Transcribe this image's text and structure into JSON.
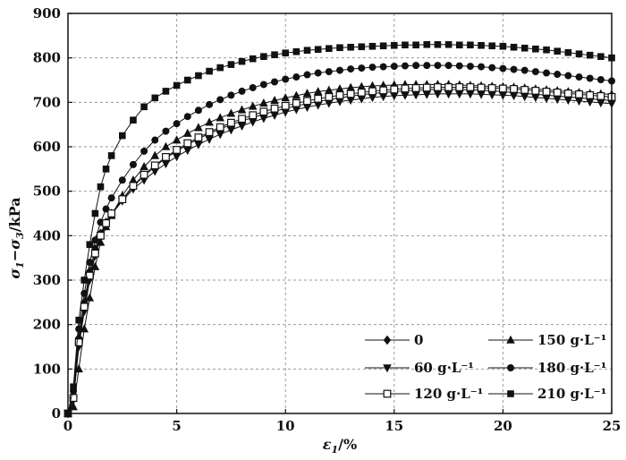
{
  "chart_data": {
    "type": "line",
    "title": "",
    "xlabel": "ε1/%",
    "ylabel": "σ1−σ3/kPa",
    "xlim": [
      0,
      25
    ],
    "ylim": [
      0,
      900
    ],
    "xticks": [
      0,
      5,
      10,
      15,
      20,
      25
    ],
    "yticks": [
      0,
      100,
      200,
      300,
      400,
      500,
      600,
      700,
      800,
      900
    ],
    "grid": true,
    "legend_position": "bottom-right",
    "x": [
      0,
      0.25,
      0.5,
      0.75,
      1,
      1.25,
      1.5,
      1.75,
      2,
      2.5,
      3,
      3.5,
      4,
      4.5,
      5,
      5.5,
      6,
      6.5,
      7,
      7.5,
      8,
      8.5,
      9,
      9.5,
      10,
      10.5,
      11,
      11.5,
      12,
      12.5,
      13,
      13.5,
      14,
      14.5,
      15,
      15.5,
      16,
      16.5,
      17,
      17.5,
      18,
      18.5,
      19,
      19.5,
      20,
      20.5,
      21,
      21.5,
      22,
      22.5,
      23,
      23.5,
      24,
      24.5,
      25
    ],
    "series": [
      {
        "name": "0",
        "marker": "diamond-filled",
        "values": [
          0,
          40,
          170,
          250,
          320,
          370,
          405,
          430,
          450,
          480,
          510,
          535,
          555,
          575,
          590,
          605,
          618,
          630,
          640,
          650,
          658,
          666,
          673,
          680,
          686,
          692,
          697,
          702,
          706,
          710,
          714,
          717,
          720,
          722,
          724,
          726,
          727,
          728,
          729,
          729,
          729,
          728,
          727,
          726,
          724,
          722,
          720,
          718,
          716,
          714,
          712,
          710,
          708,
          706,
          704
        ]
      },
      {
        "name": "150 g·L⁻¹",
        "marker": "triangle-up-filled",
        "values": [
          0,
          15,
          100,
          190,
          260,
          330,
          385,
          420,
          445,
          490,
          525,
          555,
          580,
          600,
          615,
          630,
          643,
          655,
          665,
          675,
          683,
          691,
          698,
          704,
          710,
          715,
          720,
          724,
          727,
          730,
          733,
          735,
          737,
          738,
          739,
          740,
          740,
          740,
          740,
          740,
          739,
          738,
          737,
          736,
          735,
          734,
          732,
          730,
          728,
          726,
          724,
          722,
          720,
          719,
          718
        ]
      },
      {
        "name": "60 g·L⁻¹",
        "marker": "triangle-down-filled",
        "values": [
          0,
          30,
          150,
          230,
          300,
          355,
          395,
          425,
          448,
          478,
          505,
          525,
          545,
          562,
          578,
          592,
          605,
          617,
          628,
          638,
          647,
          656,
          664,
          671,
          678,
          684,
          689,
          694,
          698,
          702,
          705,
          708,
          711,
          713,
          715,
          716,
          717,
          718,
          719,
          719,
          719,
          719,
          718,
          717,
          716,
          715,
          713,
          711,
          709,
          707,
          705,
          703,
          701,
          699,
          697
        ]
      },
      {
        "name": "180 g·L⁻¹",
        "marker": "circle-filled",
        "values": [
          0,
          50,
          190,
          270,
          340,
          390,
          430,
          460,
          485,
          525,
          560,
          590,
          615,
          635,
          652,
          668,
          682,
          695,
          706,
          716,
          725,
          733,
          740,
          746,
          752,
          757,
          762,
          766,
          769,
          772,
          775,
          777,
          779,
          780,
          781,
          782,
          783,
          783,
          783,
          783,
          782,
          781,
          780,
          778,
          776,
          774,
          772,
          769,
          766,
          763,
          760,
          757,
          754,
          751,
          748
        ]
      },
      {
        "name": "120 g·L⁻¹",
        "marker": "square-open",
        "values": [
          0,
          35,
          160,
          240,
          310,
          360,
          400,
          428,
          450,
          482,
          512,
          537,
          558,
          577,
          593,
          608,
          621,
          633,
          644,
          654,
          663,
          671,
          679,
          686,
          692,
          698,
          703,
          708,
          712,
          716,
          719,
          722,
          725,
          727,
          729,
          731,
          732,
          733,
          734,
          734,
          734,
          734,
          733,
          732,
          731,
          730,
          728,
          726,
          724,
          722,
          720,
          718,
          716,
          714,
          712
        ]
      },
      {
        "name": "210 g·L⁻¹",
        "marker": "square-filled",
        "values": [
          0,
          60,
          210,
          300,
          380,
          450,
          510,
          550,
          580,
          625,
          660,
          690,
          710,
          725,
          738,
          750,
          760,
          770,
          778,
          785,
          792,
          798,
          803,
          807,
          811,
          814,
          817,
          819,
          821,
          823,
          824,
          825,
          826,
          827,
          828,
          829,
          829,
          830,
          830,
          830,
          829,
          829,
          828,
          827,
          826,
          824,
          822,
          820,
          818,
          815,
          812,
          809,
          806,
          803,
          800
        ]
      }
    ]
  },
  "legend": {
    "items": [
      {
        "label": "0",
        "marker": "diamond-filled"
      },
      {
        "label": "150  g·L⁻¹",
        "marker": "triangle-up-filled"
      },
      {
        "label": "60  g·L⁻¹",
        "marker": "triangle-down-filled"
      },
      {
        "label": "180  g·L⁻¹",
        "marker": "circle-filled"
      },
      {
        "label": "120  g·L⁻¹",
        "marker": "square-open"
      },
      {
        "label": "210  g·L⁻¹",
        "marker": "square-filled"
      }
    ]
  },
  "colors": {
    "line": "#111111",
    "grid": "#9a9a9a",
    "background": "#ffffff"
  }
}
